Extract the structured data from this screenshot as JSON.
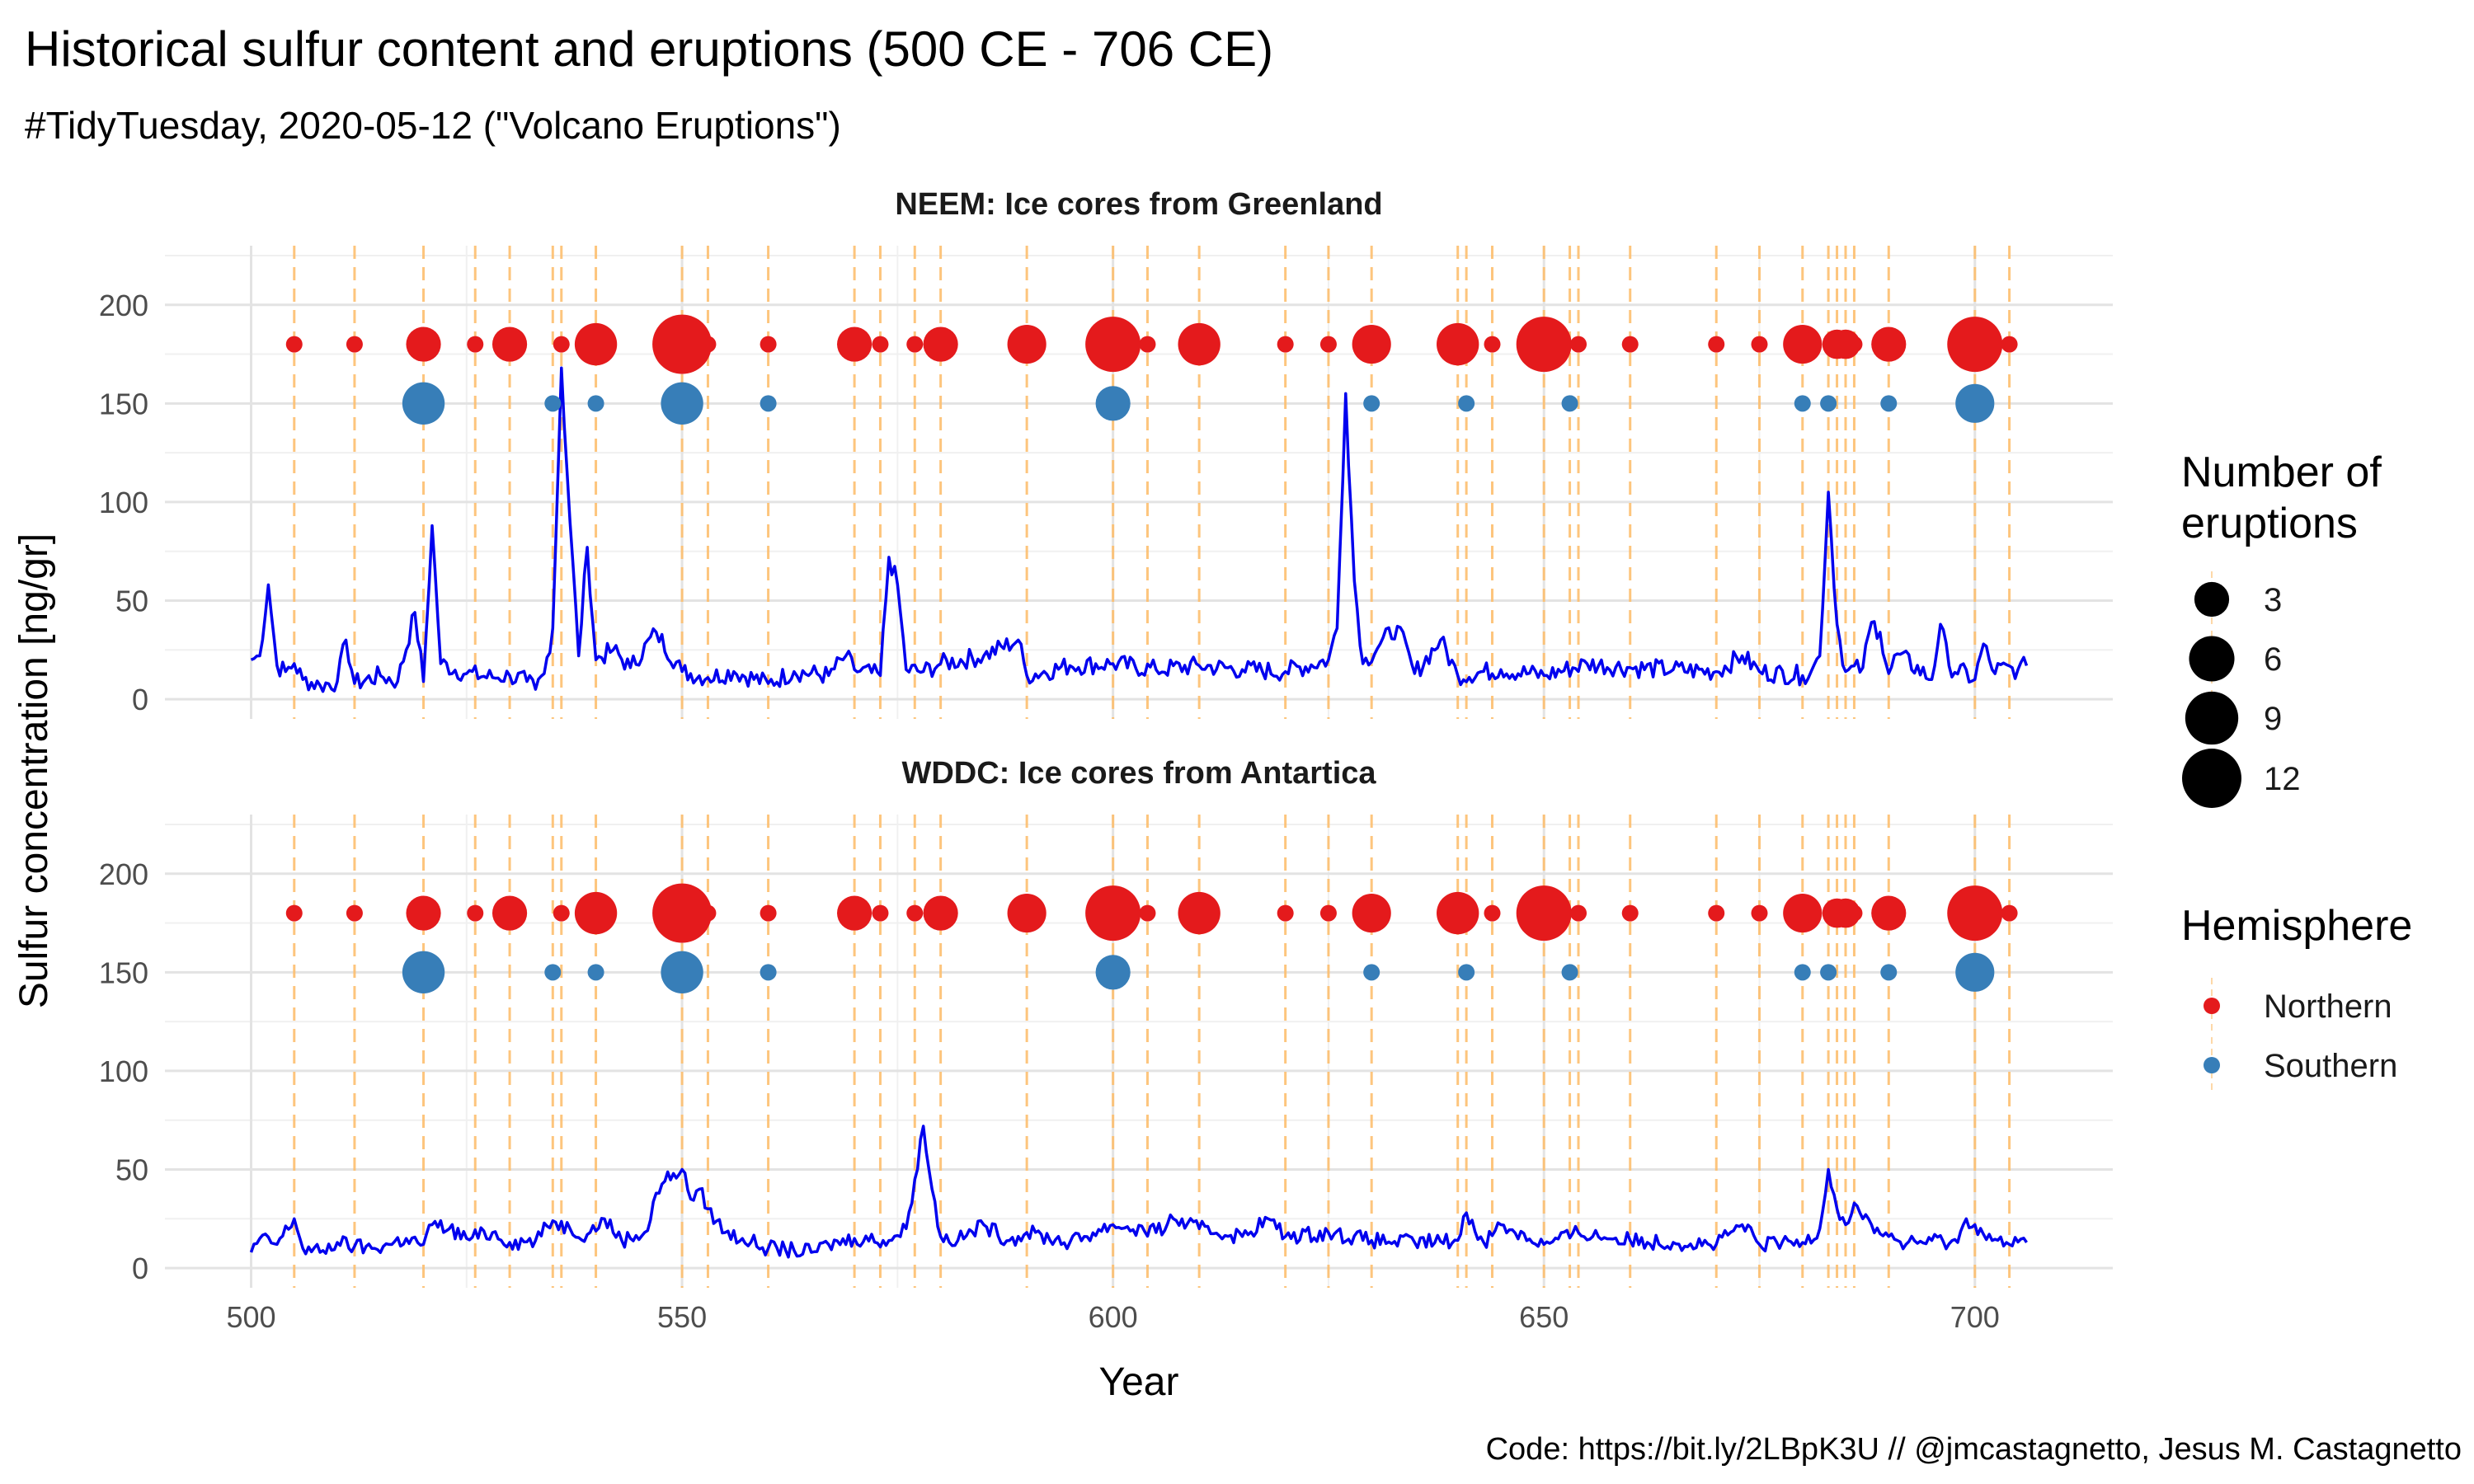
{
  "title": "Historical sulfur content and eruptions (500 CE - 706 CE)",
  "subtitle": "#TidyTuesday, 2020-05-12 (\"Volcano Eruptions\")",
  "caption": "Code: https://bit.ly/2LBpK3U // @jmcastagnetto, Jesus M. Castagnetto",
  "colors": {
    "northern": "#e41a1c",
    "southern": "#377eb8",
    "sulfur_line": "#0000ee",
    "eruption_line": "#fdbf6f",
    "grid_major": "#e3e3e3",
    "grid_minor": "#f0f0f0"
  },
  "chart_data": {
    "type": "line",
    "xlabel": "Year",
    "ylabel": "Sulfur concentration [ng/gr]",
    "xlim": [
      490,
      716
    ],
    "ylim": [
      -10,
      230
    ],
    "x_ticks": [
      500,
      550,
      600,
      650,
      700
    ],
    "y_ticks": [
      0,
      50,
      100,
      150,
      200
    ],
    "grid": true,
    "eruption_years": [
      505,
      512,
      520,
      526,
      530,
      535,
      536,
      540,
      550,
      553,
      560,
      570,
      573,
      577,
      580,
      590,
      600,
      604,
      610,
      620,
      625,
      630,
      640,
      641,
      644,
      650,
      653,
      654,
      660,
      670,
      675,
      680,
      683,
      684,
      685,
      686,
      690,
      700,
      704
    ],
    "eruption_points": {
      "northern_y": 180,
      "southern_y": 150,
      "northern": [
        {
          "year": 505,
          "n": 1
        },
        {
          "year": 512,
          "n": 1
        },
        {
          "year": 520,
          "n": 3
        },
        {
          "year": 526,
          "n": 1
        },
        {
          "year": 530,
          "n": 3
        },
        {
          "year": 536,
          "n": 1
        },
        {
          "year": 540,
          "n": 5
        },
        {
          "year": 550,
          "n": 12
        },
        {
          "year": 553,
          "n": 1
        },
        {
          "year": 560,
          "n": 1
        },
        {
          "year": 570,
          "n": 3
        },
        {
          "year": 573,
          "n": 1
        },
        {
          "year": 577,
          "n": 1
        },
        {
          "year": 580,
          "n": 3
        },
        {
          "year": 590,
          "n": 4
        },
        {
          "year": 600,
          "n": 10
        },
        {
          "year": 604,
          "n": 1
        },
        {
          "year": 610,
          "n": 5
        },
        {
          "year": 620,
          "n": 1
        },
        {
          "year": 625,
          "n": 1
        },
        {
          "year": 630,
          "n": 4
        },
        {
          "year": 640,
          "n": 5
        },
        {
          "year": 644,
          "n": 1
        },
        {
          "year": 650,
          "n": 10
        },
        {
          "year": 654,
          "n": 1
        },
        {
          "year": 660,
          "n": 1
        },
        {
          "year": 670,
          "n": 1
        },
        {
          "year": 675,
          "n": 1
        },
        {
          "year": 680,
          "n": 4
        },
        {
          "year": 684,
          "n": 2
        },
        {
          "year": 685,
          "n": 2
        },
        {
          "year": 686,
          "n": 1
        },
        {
          "year": 690,
          "n": 3
        },
        {
          "year": 700,
          "n": 10
        },
        {
          "year": 704,
          "n": 1
        }
      ],
      "southern": [
        {
          "year": 520,
          "n": 5
        },
        {
          "year": 535,
          "n": 1
        },
        {
          "year": 540,
          "n": 1
        },
        {
          "year": 550,
          "n": 5
        },
        {
          "year": 560,
          "n": 1
        },
        {
          "year": 600,
          "n": 3
        },
        {
          "year": 630,
          "n": 1
        },
        {
          "year": 641,
          "n": 1
        },
        {
          "year": 653,
          "n": 1
        },
        {
          "year": 680,
          "n": 1
        },
        {
          "year": 683,
          "n": 1
        },
        {
          "year": 690,
          "n": 1
        },
        {
          "year": 700,
          "n": 4
        }
      ]
    },
    "panels": [
      {
        "name": "NEEM: Ice cores from Greenland",
        "baseline": 12,
        "noise": 5,
        "series": [
          [
            500,
            20
          ],
          [
            501,
            22
          ],
          [
            502,
            58
          ],
          [
            503,
            17
          ],
          [
            504,
            14
          ],
          [
            505,
            18
          ],
          [
            506,
            10
          ],
          [
            508,
            7
          ],
          [
            510,
            9
          ],
          [
            511,
            30
          ],
          [
            512,
            8
          ],
          [
            515,
            12
          ],
          [
            517,
            9
          ],
          [
            519,
            44
          ],
          [
            520,
            9
          ],
          [
            521,
            88
          ],
          [
            522,
            18
          ],
          [
            525,
            13
          ],
          [
            528,
            11
          ],
          [
            530,
            12
          ],
          [
            532,
            9
          ],
          [
            533,
            5
          ],
          [
            534,
            13
          ],
          [
            535,
            36
          ],
          [
            536,
            168
          ],
          [
            537,
            90
          ],
          [
            538,
            22
          ],
          [
            539,
            77
          ],
          [
            540,
            20
          ],
          [
            542,
            25
          ],
          [
            544,
            16
          ],
          [
            547,
            34
          ],
          [
            550,
            14
          ],
          [
            553,
            11
          ],
          [
            556,
            14
          ],
          [
            560,
            8
          ],
          [
            563,
            14
          ],
          [
            567,
            12
          ],
          [
            569,
            22
          ],
          [
            570,
            15
          ],
          [
            573,
            12
          ],
          [
            574,
            72
          ],
          [
            575,
            58
          ],
          [
            576,
            15
          ],
          [
            578,
            14
          ],
          [
            580,
            18
          ],
          [
            585,
            22
          ],
          [
            589,
            30
          ],
          [
            590,
            12
          ],
          [
            595,
            17
          ],
          [
            600,
            18
          ],
          [
            605,
            15
          ],
          [
            610,
            17
          ],
          [
            615,
            15
          ],
          [
            620,
            14
          ],
          [
            625,
            20
          ],
          [
            626,
            36
          ],
          [
            627,
            155
          ],
          [
            628,
            60
          ],
          [
            629,
            18
          ],
          [
            631,
            28
          ],
          [
            633,
            37
          ],
          [
            635,
            13
          ],
          [
            638,
            30
          ],
          [
            640,
            12
          ],
          [
            645,
            15
          ],
          [
            650,
            12
          ],
          [
            655,
            18
          ],
          [
            660,
            16
          ],
          [
            665,
            15
          ],
          [
            670,
            14
          ],
          [
            673,
            22
          ],
          [
            675,
            14
          ],
          [
            680,
            12
          ],
          [
            681,
            14
          ],
          [
            682,
            22
          ],
          [
            683,
            105
          ],
          [
            684,
            38
          ],
          [
            685,
            14
          ],
          [
            687,
            16
          ],
          [
            688,
            39
          ],
          [
            689,
            34
          ],
          [
            690,
            13
          ],
          [
            691,
            23
          ],
          [
            695,
            10
          ],
          [
            696,
            38
          ],
          [
            697,
            17
          ],
          [
            700,
            10
          ],
          [
            701,
            28
          ],
          [
            702,
            15
          ],
          [
            705,
            15
          ],
          [
            706,
            17
          ]
        ]
      },
      {
        "name": "WDDC: Ice cores from Antartica",
        "baseline": 12,
        "noise": 4,
        "series": [
          [
            500,
            8
          ],
          [
            501,
            15
          ],
          [
            503,
            12
          ],
          [
            505,
            25
          ],
          [
            506,
            10
          ],
          [
            508,
            8
          ],
          [
            510,
            13
          ],
          [
            512,
            11
          ],
          [
            514,
            10
          ],
          [
            516,
            12
          ],
          [
            518,
            15
          ],
          [
            520,
            12
          ],
          [
            521,
            22
          ],
          [
            523,
            20
          ],
          [
            525,
            15
          ],
          [
            528,
            18
          ],
          [
            530,
            13
          ],
          [
            533,
            14
          ],
          [
            535,
            24
          ],
          [
            537,
            20
          ],
          [
            539,
            17
          ],
          [
            541,
            25
          ],
          [
            543,
            14
          ],
          [
            546,
            19
          ],
          [
            547,
            38
          ],
          [
            548,
            44
          ],
          [
            549,
            48
          ],
          [
            550,
            50
          ],
          [
            551,
            35
          ],
          [
            552,
            40
          ],
          [
            553,
            30
          ],
          [
            555,
            18
          ],
          [
            557,
            15
          ],
          [
            560,
            10
          ],
          [
            563,
            9
          ],
          [
            565,
            8
          ],
          [
            567,
            12
          ],
          [
            570,
            15
          ],
          [
            574,
            14
          ],
          [
            576,
            20
          ],
          [
            577,
            45
          ],
          [
            578,
            72
          ],
          [
            579,
            40
          ],
          [
            580,
            16
          ],
          [
            582,
            14
          ],
          [
            585,
            22
          ],
          [
            588,
            14
          ],
          [
            590,
            18
          ],
          [
            595,
            13
          ],
          [
            600,
            22
          ],
          [
            605,
            18
          ],
          [
            607,
            25
          ],
          [
            610,
            20
          ],
          [
            615,
            16
          ],
          [
            618,
            25
          ],
          [
            620,
            16
          ],
          [
            625,
            18
          ],
          [
            630,
            14
          ],
          [
            635,
            13
          ],
          [
            640,
            14
          ],
          [
            641,
            28
          ],
          [
            643,
            13
          ],
          [
            645,
            22
          ],
          [
            650,
            12
          ],
          [
            654,
            18
          ],
          [
            660,
            14
          ],
          [
            665,
            13
          ],
          [
            670,
            12
          ],
          [
            673,
            22
          ],
          [
            675,
            12
          ],
          [
            680,
            13
          ],
          [
            682,
            20
          ],
          [
            683,
            50
          ],
          [
            684,
            30
          ],
          [
            685,
            22
          ],
          [
            686,
            33
          ],
          [
            687,
            25
          ],
          [
            688,
            22
          ],
          [
            690,
            16
          ],
          [
            692,
            12
          ],
          [
            695,
            14
          ],
          [
            698,
            13
          ],
          [
            699,
            25
          ],
          [
            700,
            22
          ],
          [
            702,
            14
          ],
          [
            704,
            12
          ],
          [
            706,
            13
          ]
        ]
      }
    ],
    "legend_size": {
      "title": "Number of eruptions",
      "title_lines": [
        "Number of",
        "eruptions"
      ],
      "values": [
        "3",
        "6",
        "9",
        "12"
      ],
      "n": [
        3,
        6,
        9,
        12
      ]
    },
    "legend_hemisphere": {
      "title": "Hemisphere",
      "items": [
        {
          "label": "Northern",
          "color": "#e41a1c"
        },
        {
          "label": "Southern",
          "color": "#377eb8"
        }
      ]
    }
  }
}
